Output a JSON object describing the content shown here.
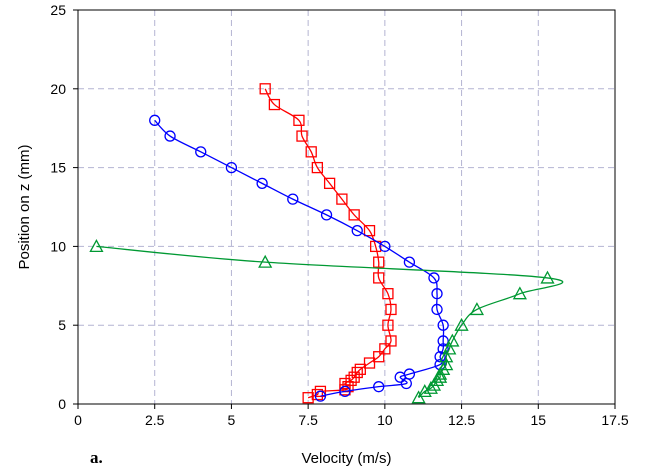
{
  "chart_data": {
    "type": "scatter",
    "title": "",
    "xlabel": "Velocity (m/s)",
    "ylabel": "Position on z (mm)",
    "panel_label": "a.",
    "xlim": [
      0,
      17.5
    ],
    "ylim": [
      0,
      25
    ],
    "xticks": [
      "0",
      "2.5",
      "5",
      "7.5",
      "10",
      "12.5",
      "15",
      "17.5"
    ],
    "yticks": [
      "0",
      "5",
      "10",
      "15",
      "20",
      "25"
    ],
    "grid": true,
    "grid_style": "dashed",
    "series": [
      {
        "color": "#ff0000",
        "marker": "square",
        "x": [
          6.1,
          6.4,
          7.2,
          7.3,
          7.6,
          7.8,
          8.2,
          8.6,
          9.0,
          9.5,
          9.7,
          9.8,
          9.8,
          10.1,
          10.2,
          10.1,
          10.2,
          10.0,
          9.8,
          9.5,
          9.2,
          9.1,
          9.0,
          8.9,
          8.7,
          8.8,
          8.7,
          7.9,
          7.8,
          7.5
        ],
        "y": [
          20,
          19,
          18,
          17,
          16,
          15,
          14,
          13,
          12,
          11,
          10,
          9,
          8,
          7,
          6,
          5,
          4,
          3.5,
          3,
          2.6,
          2.2,
          2,
          1.7,
          1.5,
          1.3,
          1.1,
          0.9,
          0.8,
          0.6,
          0.4
        ]
      },
      {
        "color": "#0000ff",
        "marker": "circle",
        "x": [
          2.5,
          3.0,
          4.0,
          5.0,
          6.0,
          7.0,
          8.1,
          9.1,
          10.0,
          10.8,
          11.6,
          11.7,
          11.7,
          11.9,
          11.9,
          11.9,
          11.8,
          11.8,
          10.8,
          10.5,
          10.7,
          9.8,
          8.7,
          7.9
        ],
        "y": [
          18,
          17,
          16,
          15,
          14,
          13,
          12,
          11,
          10,
          9,
          8,
          7,
          6,
          5,
          4,
          3.5,
          3,
          2.5,
          1.9,
          1.7,
          1.3,
          1.1,
          0.8,
          0.5
        ]
      },
      {
        "color": "#009933",
        "marker": "triangle",
        "x": [
          0.6,
          6.1,
          15.3,
          14.4,
          13.0,
          12.5,
          12.2,
          12.1,
          12.0,
          12.0,
          11.9,
          11.8,
          11.8,
          11.7,
          11.6,
          11.5,
          11.3,
          11.1
        ],
        "y": [
          10,
          9,
          8,
          7,
          6,
          5,
          4,
          3.5,
          3,
          2.5,
          2.2,
          1.9,
          1.7,
          1.5,
          1.2,
          1.0,
          0.8,
          0.4
        ]
      }
    ]
  }
}
